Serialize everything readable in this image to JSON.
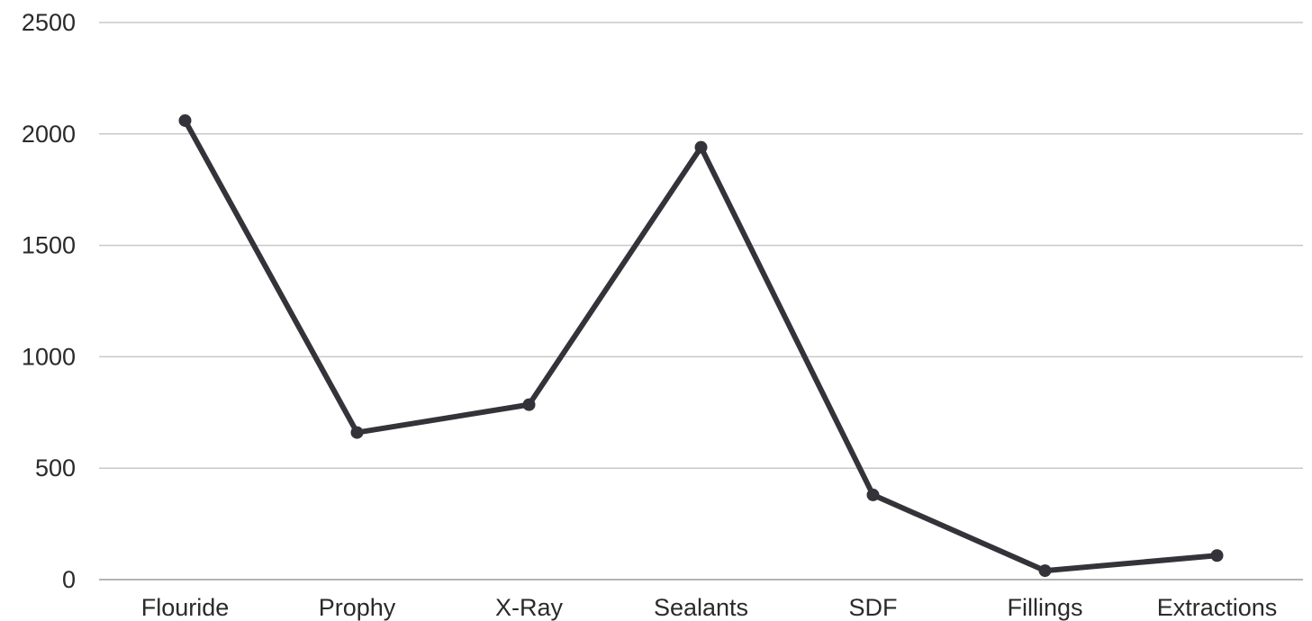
{
  "chart_data": {
    "type": "line",
    "categories": [
      "Flouride",
      "Prophy",
      "X-Ray",
      "Sealants",
      "SDF",
      "Fillings",
      "Extractions"
    ],
    "series": [
      {
        "values": [
          2060,
          660,
          785,
          1940,
          380,
          40,
          108
        ],
        "color": "#34333a"
      }
    ],
    "title": "",
    "xlabel": "",
    "ylabel": "",
    "ylim": [
      0,
      2500
    ],
    "yticks": [
      0,
      500,
      1000,
      1500,
      2000,
      2500
    ],
    "grid": true,
    "legend": "none"
  }
}
